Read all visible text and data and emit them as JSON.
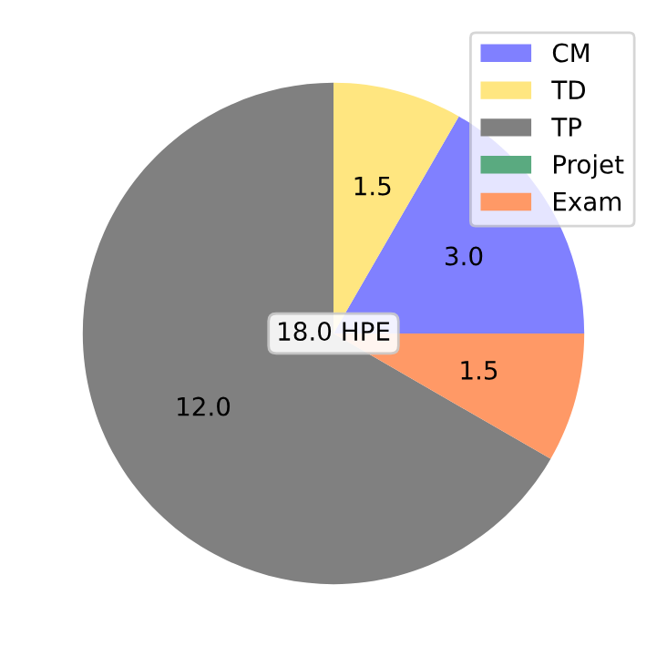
{
  "chart_data": {
    "type": "pie",
    "categories": [
      "CM",
      "TD",
      "TP",
      "Projet",
      "Exam"
    ],
    "values": [
      3.0,
      1.5,
      12.0,
      0,
      1.5
    ],
    "colors": [
      "#8080ff",
      "#ffe680",
      "#808080",
      "#5aaa80",
      "#ff9966"
    ],
    "value_labels": [
      "3.0",
      "1.5",
      "12.0",
      null,
      "1.5"
    ],
    "annotations": [
      "18.0 HPE"
    ],
    "legend": "top right"
  }
}
